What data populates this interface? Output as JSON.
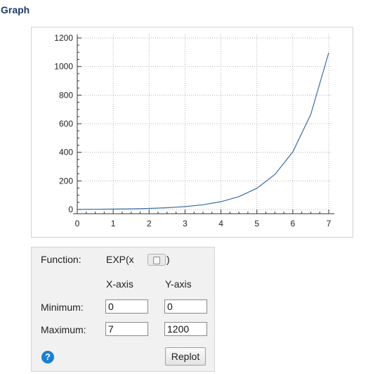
{
  "page": {
    "title": "Graph"
  },
  "chart_data": {
    "type": "line",
    "function": "exp(x)",
    "xlim": [
      0,
      7
    ],
    "ylim": [
      0,
      1200
    ],
    "x_ticks": [
      0,
      1,
      2,
      3,
      4,
      5,
      6,
      7
    ],
    "y_ticks": [
      0,
      200,
      400,
      600,
      800,
      1000,
      1200
    ],
    "grid": true,
    "line_color": "#3a6ea5",
    "series": [
      {
        "x": [
          0,
          0.5,
          1,
          1.5,
          2,
          2.5,
          3,
          3.5,
          4,
          4.5,
          5,
          5.5,
          6,
          6.5,
          7
        ],
        "values": [
          1,
          1.65,
          2.72,
          4.48,
          7.39,
          12.18,
          20.09,
          33.12,
          54.6,
          90.02,
          148.41,
          244.69,
          403.43,
          665.14,
          1096.63
        ]
      }
    ]
  },
  "controls": {
    "function_label": "Function:",
    "function_prefix": "EXP(x",
    "function_suffix": ")",
    "xaxis_header": "X-axis",
    "yaxis_header": "Y-axis",
    "minimum_label": "Minimum:",
    "maximum_label": "Maximum:",
    "x_min": "0",
    "y_min": "0",
    "x_max": "7",
    "y_max": "1200",
    "help_glyph": "?",
    "help_icon": "question-circle-icon",
    "replot_label": "Replot"
  }
}
